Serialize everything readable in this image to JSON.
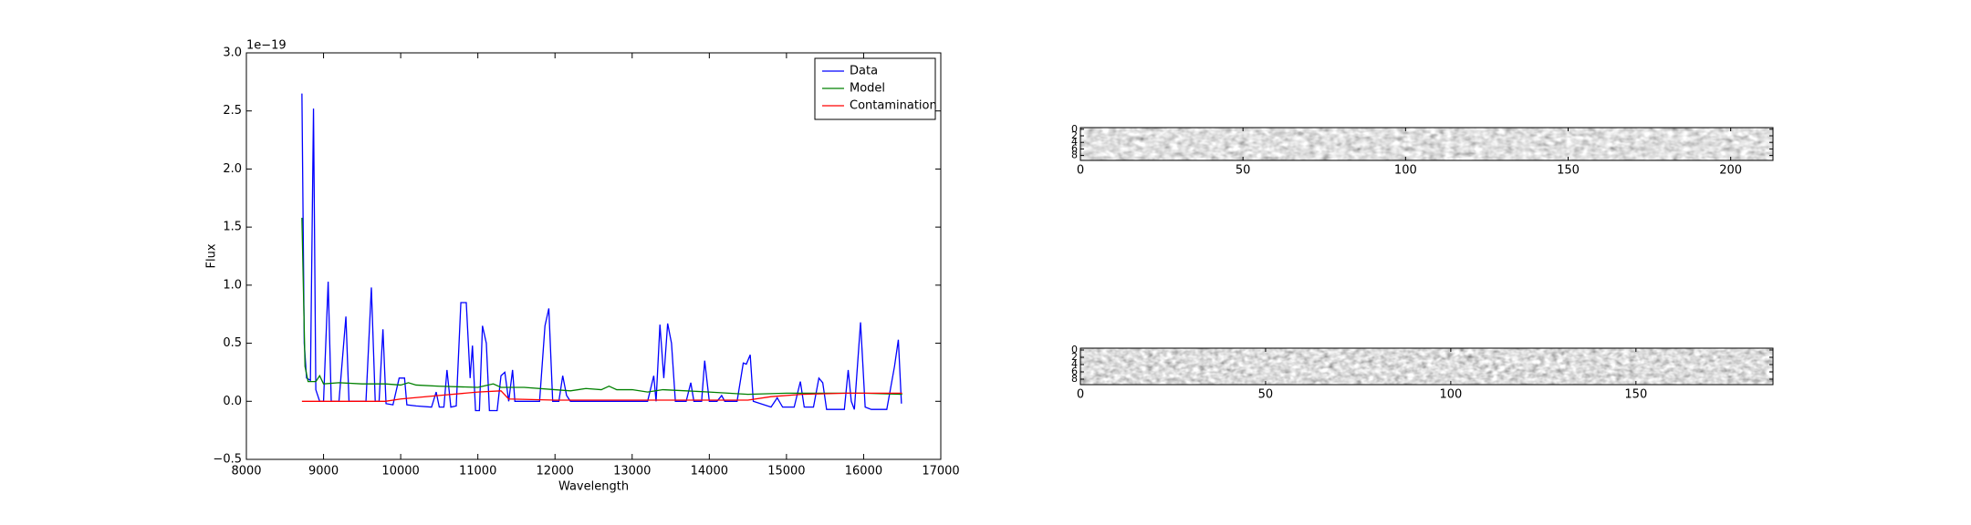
{
  "chart_data": [
    {
      "type": "line",
      "ylabel": "Flux",
      "xlabel": "Wavelength",
      "offset_text": "1e−19",
      "xlim": [
        8000,
        17000
      ],
      "ylim": [
        -0.5,
        3.0
      ],
      "xticks": [
        8000,
        9000,
        10000,
        11000,
        12000,
        13000,
        14000,
        15000,
        16000,
        17000
      ],
      "yticks": [
        {
          "value": -0.5,
          "label": "−0.5"
        },
        {
          "value": 0,
          "label": "0.0"
        },
        0.5,
        {
          "value": 1,
          "label": "1.0"
        },
        1.5,
        {
          "value": 2,
          "label": "2.0"
        },
        2.5,
        {
          "value": 3,
          "label": "3.0"
        }
      ],
      "legend": "upper right",
      "series": [
        {
          "name": "Data",
          "color": "#0000ff",
          "x": [
            8720,
            8750,
            8780,
            8830,
            8870,
            8900,
            8950,
            9000,
            9060,
            9100,
            9200,
            9290,
            9330,
            9400,
            9550,
            9620,
            9670,
            9720,
            9770,
            9810,
            9900,
            9980,
            10050,
            10080,
            10200,
            10400,
            10460,
            10500,
            10560,
            10600,
            10650,
            10720,
            10780,
            10850,
            10900,
            10930,
            10970,
            11020,
            11060,
            11110,
            11150,
            11250,
            11300,
            11350,
            11400,
            11450,
            11480,
            11600,
            11800,
            11870,
            11920,
            11970,
            12050,
            12100,
            12150,
            12200,
            12800,
            13200,
            13280,
            13310,
            13360,
            13410,
            13460,
            13510,
            13560,
            13700,
            13760,
            13800,
            13900,
            13940,
            14000,
            14100,
            14160,
            14200,
            14360,
            14440,
            14480,
            14530,
            14570,
            14800,
            14880,
            14950,
            15100,
            15180,
            15230,
            15350,
            15420,
            15470,
            15520,
            15750,
            15800,
            15840,
            15880,
            15960,
            16020,
            16100,
            16300,
            16400,
            16450,
            16490
          ],
          "values": [
            2.65,
            0.5,
            0.2,
            0.18,
            2.52,
            0.1,
            0,
            0,
            1.03,
            0,
            0,
            0.73,
            0,
            0,
            0,
            0.98,
            0,
            0,
            0.62,
            -0.02,
            -0.03,
            0.2,
            0.2,
            -0.03,
            -0.04,
            -0.05,
            0.08,
            -0.05,
            -0.05,
            0.27,
            -0.05,
            -0.04,
            0.85,
            0.85,
            0.2,
            0.48,
            -0.08,
            -0.08,
            0.65,
            0.5,
            -0.08,
            -0.08,
            0.22,
            0.25,
            0,
            0.27,
            0,
            0,
            0,
            0.65,
            0.8,
            0,
            0,
            0.22,
            0.05,
            0,
            0,
            0,
            0.22,
            0,
            0.66,
            0.2,
            0.67,
            0.5,
            0,
            0,
            0.16,
            0,
            0,
            0.35,
            0,
            0,
            0.05,
            0,
            0,
            0.33,
            0.32,
            0.4,
            0,
            -0.05,
            0.03,
            -0.05,
            -0.05,
            0.17,
            -0.05,
            -0.05,
            0.2,
            0.16,
            -0.07,
            -0.07,
            0.27,
            0,
            -0.07,
            0.68,
            -0.05,
            -0.07,
            -0.07,
            0.3,
            0.53,
            -0.02
          ]
        },
        {
          "name": "Model",
          "color": "#008000",
          "x": [
            8720,
            8760,
            8800,
            8900,
            8950,
            9000,
            9200,
            9500,
            9800,
            10000,
            10100,
            10200,
            10500,
            11000,
            11200,
            11300,
            11600,
            12000,
            12200,
            12400,
            12600,
            12700,
            12800,
            13000,
            13200,
            13400,
            13700,
            14000,
            14500,
            15000,
            15500,
            16000,
            16500
          ],
          "values": [
            1.58,
            0.3,
            0.17,
            0.17,
            0.22,
            0.15,
            0.16,
            0.15,
            0.15,
            0.14,
            0.16,
            0.14,
            0.13,
            0.12,
            0.15,
            0.12,
            0.12,
            0.1,
            0.09,
            0.11,
            0.1,
            0.13,
            0.1,
            0.1,
            0.08,
            0.1,
            0.09,
            0.08,
            0.06,
            0.07,
            0.07,
            0.07,
            0.06
          ]
        },
        {
          "name": "Contamination",
          "color": "#ff0000",
          "x": [
            8720,
            9800,
            10000,
            10500,
            11000,
            11300,
            11400,
            12000,
            14500,
            14800,
            15200,
            15800,
            16500
          ],
          "values": [
            0,
            0,
            0.02,
            0.05,
            0.08,
            0.09,
            0.02,
            0.01,
            0.01,
            0.04,
            0.06,
            0.07,
            0.07
          ]
        }
      ]
    },
    {
      "type": "image",
      "xlim": [
        0,
        213
      ],
      "ylim": [
        -0.5,
        9.5
      ],
      "xticks": [
        0,
        50,
        100,
        150,
        200
      ],
      "yticks": [
        0,
        2,
        4,
        6,
        8
      ]
    },
    {
      "type": "image",
      "xlim": [
        0,
        187
      ],
      "ylim": [
        -0.5,
        9.5
      ],
      "xticks": [
        0,
        50,
        100,
        150
      ],
      "yticks": [
        0,
        2,
        4,
        6,
        8
      ]
    }
  ]
}
